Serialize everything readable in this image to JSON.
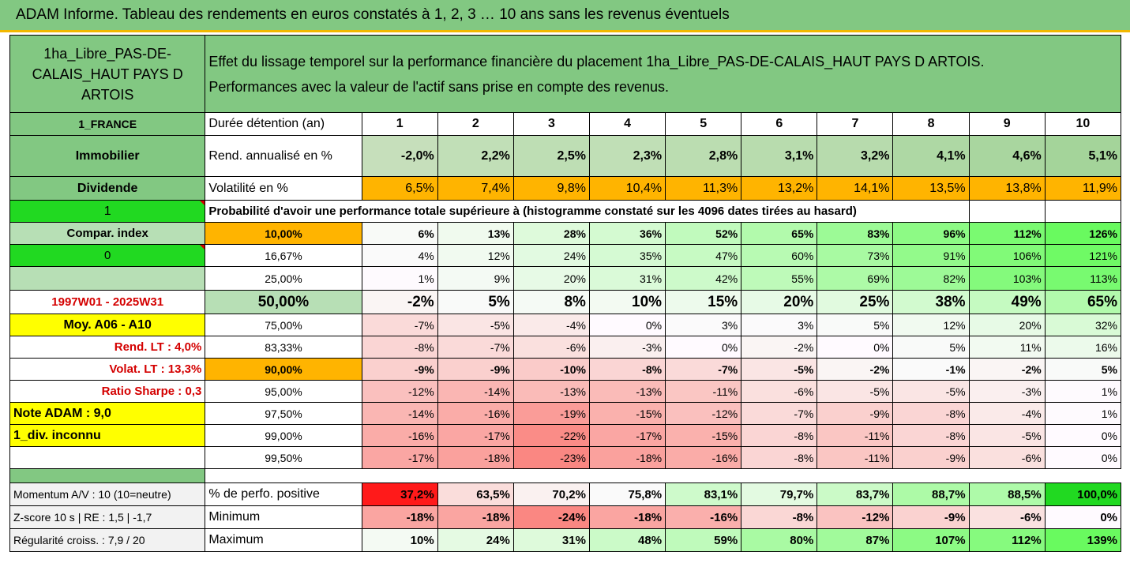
{
  "title": "ADAM Informe. Tableau des rendements en euros constatés à 1, 2, 3 … 10 ans sans les revenus éventuels",
  "asset_name": "1ha_Libre_PAS-DE-CALAIS_HAUT PAYS D ARTOIS",
  "description_line1": "Effet du lissage temporel sur la performance financière du placement 1ha_Libre_PAS-DE-CALAIS_HAUT PAYS D ARTOIS.",
  "description_line2": "Performances avec la valeur de l'actif sans prise en compte des revenus.",
  "left": {
    "country": "1_FRANCE",
    "category": "Immobilier",
    "dividend": "Dividende",
    "flag1": "1",
    "compar": "Compar. index",
    "flag0": "0",
    "period": "1997W01 - 2025W31",
    "moy": "Moy. A06 - A10",
    "rend_lt": "Rend. LT :   4,0%",
    "volat_lt": "Volat. LT :   13,3%",
    "sharpe": "Ratio Sharpe :   0,3",
    "note": "Note ADAM : 9,0",
    "div": "1_div. inconnu"
  },
  "header": {
    "duree_label": "Durée détention (an)",
    "years": [
      "1",
      "2",
      "3",
      "4",
      "5",
      "6",
      "7",
      "8",
      "9",
      "10"
    ]
  },
  "rend_label": "Rend. annualisé en %",
  "rend": [
    "-2,0%",
    "2,2%",
    "2,5%",
    "2,3%",
    "2,8%",
    "3,1%",
    "3,2%",
    "4,1%",
    "4,6%",
    "5,1%"
  ],
  "vol_label": "Volatilité en %",
  "vol": [
    "6,5%",
    "7,4%",
    "9,8%",
    "10,4%",
    "11,3%",
    "13,2%",
    "14,1%",
    "13,5%",
    "13,8%",
    "11,9%"
  ],
  "prob_label": "Probabilité d'avoir une performance totale supérieure à (histogramme constaté sur les 4096 dates tirées au hasard)",
  "quantiles": [
    {
      "q": "10,00%",
      "v": [
        "6%",
        "13%",
        "28%",
        "36%",
        "52%",
        "65%",
        "83%",
        "96%",
        "112%",
        "126%"
      ]
    },
    {
      "q": "16,67%",
      "v": [
        "4%",
        "12%",
        "24%",
        "35%",
        "47%",
        "60%",
        "73%",
        "91%",
        "106%",
        "121%"
      ]
    },
    {
      "q": "25,00%",
      "v": [
        "1%",
        "9%",
        "20%",
        "31%",
        "42%",
        "55%",
        "69%",
        "82%",
        "103%",
        "113%"
      ]
    },
    {
      "q": "50,00%",
      "v": [
        "-2%",
        "5%",
        "8%",
        "10%",
        "15%",
        "20%",
        "25%",
        "38%",
        "49%",
        "65%"
      ]
    },
    {
      "q": "75,00%",
      "v": [
        "-7%",
        "-5%",
        "-4%",
        "0%",
        "3%",
        "3%",
        "5%",
        "12%",
        "20%",
        "32%"
      ]
    },
    {
      "q": "83,33%",
      "v": [
        "-8%",
        "-7%",
        "-6%",
        "-3%",
        "0%",
        "-2%",
        "0%",
        "5%",
        "11%",
        "16%"
      ]
    },
    {
      "q": "90,00%",
      "v": [
        "-9%",
        "-9%",
        "-10%",
        "-8%",
        "-7%",
        "-5%",
        "-2%",
        "-1%",
        "-2%",
        "5%"
      ]
    },
    {
      "q": "95,00%",
      "v": [
        "-12%",
        "-14%",
        "-13%",
        "-13%",
        "-11%",
        "-6%",
        "-5%",
        "-5%",
        "-3%",
        "1%"
      ]
    },
    {
      "q": "97,50%",
      "v": [
        "-14%",
        "-16%",
        "-19%",
        "-15%",
        "-12%",
        "-7%",
        "-9%",
        "-8%",
        "-4%",
        "1%"
      ]
    },
    {
      "q": "99,00%",
      "v": [
        "-16%",
        "-17%",
        "-22%",
        "-17%",
        "-15%",
        "-8%",
        "-11%",
        "-8%",
        "-5%",
        "0%"
      ]
    },
    {
      "q": "99,50%",
      "v": [
        "-17%",
        "-18%",
        "-23%",
        "-18%",
        "-16%",
        "-8%",
        "-11%",
        "-9%",
        "-6%",
        "0%"
      ]
    }
  ],
  "bottom": [
    {
      "left": "Momentum A/V : 10 (10=neutre)",
      "label": "% de perfo. positive",
      "v": [
        "37,2%",
        "63,5%",
        "70,2%",
        "75,8%",
        "83,1%",
        "79,7%",
        "83,7%",
        "88,7%",
        "88,5%",
        "100,0%"
      ]
    },
    {
      "left": "Z-score 10 s  |  RE : 1,5  |  -1,7",
      "label": "Minimum",
      "v": [
        "-18%",
        "-18%",
        "-24%",
        "-18%",
        "-16%",
        "-8%",
        "-12%",
        "-9%",
        "-6%",
        "0%"
      ]
    },
    {
      "left": "Régularité croiss. : 7,9 / 20",
      "label": "Maximum",
      "v": [
        "10%",
        "24%",
        "31%",
        "48%",
        "59%",
        "80%",
        "87%",
        "107%",
        "112%",
        "139%"
      ]
    }
  ],
  "colors": {
    "green_dark": "#82c882",
    "green_light": "#b7dfb5",
    "lime": "#21d921",
    "yellow": "#ffff00",
    "orange": "#ffb400",
    "red_text": "#d40000"
  }
}
